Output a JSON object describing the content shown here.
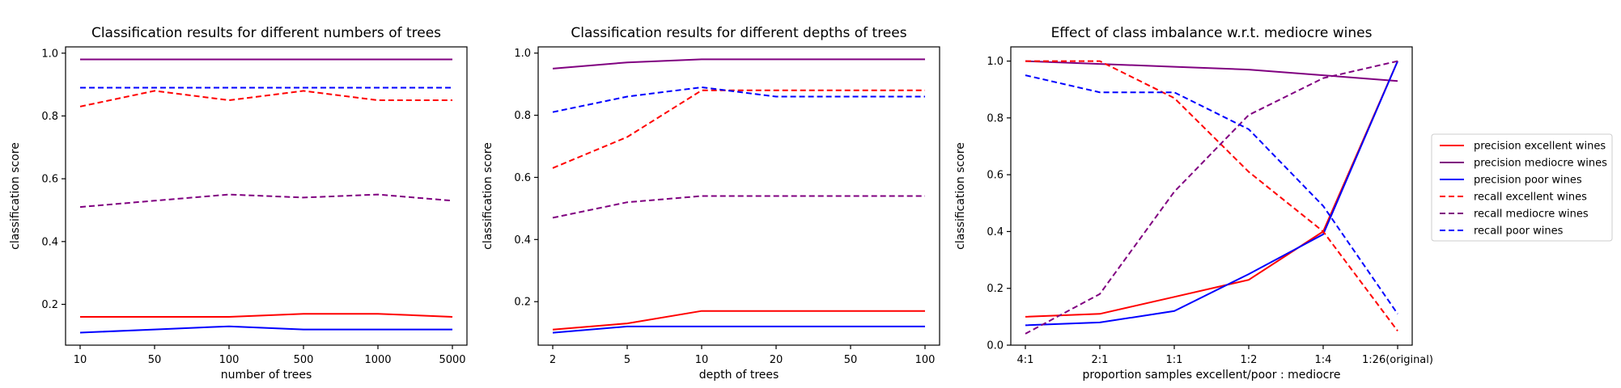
{
  "colors": {
    "excellent": "#ff0000",
    "mediocre": "#800080",
    "poor": "#0000ff"
  },
  "legend": {
    "placement": "right, outside third plot",
    "entries": [
      {
        "label": "precision excellent wines",
        "color": "#ff0000",
        "style": "solid"
      },
      {
        "label": "precision mediocre wines",
        "color": "#800080",
        "style": "solid"
      },
      {
        "label": "precision poor wines",
        "color": "#0000ff",
        "style": "solid"
      },
      {
        "label": "recall excellent wines",
        "color": "#ff0000",
        "style": "dashed"
      },
      {
        "label": "recall mediocre wines",
        "color": "#800080",
        "style": "dashed"
      },
      {
        "label": "recall poor wines",
        "color": "#0000ff",
        "style": "dashed"
      }
    ]
  },
  "chart_data": [
    {
      "type": "line",
      "title": "Classification results for different numbers of trees",
      "xlabel": "number of trees",
      "ylabel": "classification score",
      "categories": [
        "10",
        "50",
        "100",
        "500",
        "1000",
        "5000"
      ],
      "ylim": [
        0.07,
        1.02
      ],
      "yticks": [
        "0.2",
        "0.4",
        "0.6",
        "0.8",
        "1.0"
      ],
      "grid": false,
      "series": [
        {
          "name": "precision excellent wines",
          "color": "#ff0000",
          "style": "solid",
          "values": [
            0.16,
            0.16,
            0.16,
            0.17,
            0.17,
            0.16
          ]
        },
        {
          "name": "precision mediocre wines",
          "color": "#800080",
          "style": "solid",
          "values": [
            0.98,
            0.98,
            0.98,
            0.98,
            0.98,
            0.98
          ]
        },
        {
          "name": "precision poor wines",
          "color": "#0000ff",
          "style": "solid",
          "values": [
            0.11,
            0.12,
            0.13,
            0.12,
            0.12,
            0.12
          ]
        },
        {
          "name": "recall excellent wines",
          "color": "#ff0000",
          "style": "dashed",
          "values": [
            0.83,
            0.88,
            0.85,
            0.88,
            0.85,
            0.85
          ]
        },
        {
          "name": "recall mediocre wines",
          "color": "#800080",
          "style": "dashed",
          "values": [
            0.51,
            0.53,
            0.55,
            0.54,
            0.55,
            0.53
          ]
        },
        {
          "name": "recall poor wines",
          "color": "#0000ff",
          "style": "dashed",
          "values": [
            0.89,
            0.89,
            0.89,
            0.89,
            0.89,
            0.89
          ]
        }
      ]
    },
    {
      "type": "line",
      "title": "Classification results for different depths of trees",
      "xlabel": "depth of trees",
      "ylabel": "classification score",
      "categories": [
        "2",
        "5",
        "10",
        "20",
        "50",
        "100"
      ],
      "ylim": [
        0.06,
        1.02
      ],
      "yticks": [
        "0.2",
        "0.4",
        "0.6",
        "0.8",
        "1.0"
      ],
      "grid": false,
      "series": [
        {
          "name": "precision excellent wines",
          "color": "#ff0000",
          "style": "solid",
          "values": [
            0.11,
            0.13,
            0.17,
            0.17,
            0.17,
            0.17
          ]
        },
        {
          "name": "precision mediocre wines",
          "color": "#800080",
          "style": "solid",
          "values": [
            0.95,
            0.97,
            0.98,
            0.98,
            0.98,
            0.98
          ]
        },
        {
          "name": "precision poor wines",
          "color": "#0000ff",
          "style": "solid",
          "values": [
            0.1,
            0.12,
            0.12,
            0.12,
            0.12,
            0.12
          ]
        },
        {
          "name": "recall excellent wines",
          "color": "#ff0000",
          "style": "dashed",
          "values": [
            0.63,
            0.73,
            0.88,
            0.88,
            0.88,
            0.88
          ]
        },
        {
          "name": "recall mediocre wines",
          "color": "#800080",
          "style": "dashed",
          "values": [
            0.47,
            0.52,
            0.54,
            0.54,
            0.54,
            0.54
          ]
        },
        {
          "name": "recall poor wines",
          "color": "#0000ff",
          "style": "dashed",
          "values": [
            0.81,
            0.86,
            0.89,
            0.86,
            0.86,
            0.86
          ]
        }
      ]
    },
    {
      "type": "line",
      "title": "Effect of class imbalance w.r.t. mediocre wines",
      "xlabel": "proportion samples excellent/poor : mediocre",
      "ylabel": "classification score",
      "categories": [
        "4:1",
        "2:1",
        "1:1",
        "1:2",
        "1:4",
        "1:26(original)"
      ],
      "ylim": [
        0.0,
        1.05
      ],
      "yticks": [
        "0.0",
        "0.2",
        "0.4",
        "0.6",
        "0.8",
        "1.0"
      ],
      "grid": false,
      "series": [
        {
          "name": "precision excellent wines",
          "color": "#ff0000",
          "style": "solid",
          "values": [
            0.1,
            0.11,
            0.17,
            0.23,
            0.4,
            1.0
          ]
        },
        {
          "name": "precision mediocre wines",
          "color": "#800080",
          "style": "solid",
          "values": [
            1.0,
            0.99,
            0.98,
            0.97,
            0.95,
            0.93
          ]
        },
        {
          "name": "precision poor wines",
          "color": "#0000ff",
          "style": "solid",
          "values": [
            0.07,
            0.08,
            0.12,
            0.25,
            0.39,
            1.0
          ]
        },
        {
          "name": "recall excellent wines",
          "color": "#ff0000",
          "style": "dashed",
          "values": [
            1.0,
            1.0,
            0.87,
            0.61,
            0.4,
            0.05
          ]
        },
        {
          "name": "recall mediocre wines",
          "color": "#800080",
          "style": "dashed",
          "values": [
            0.04,
            0.18,
            0.54,
            0.81,
            0.94,
            1.0
          ]
        },
        {
          "name": "recall poor wines",
          "color": "#0000ff",
          "style": "dashed",
          "values": [
            0.95,
            0.89,
            0.89,
            0.76,
            0.49,
            0.11
          ]
        }
      ]
    }
  ]
}
